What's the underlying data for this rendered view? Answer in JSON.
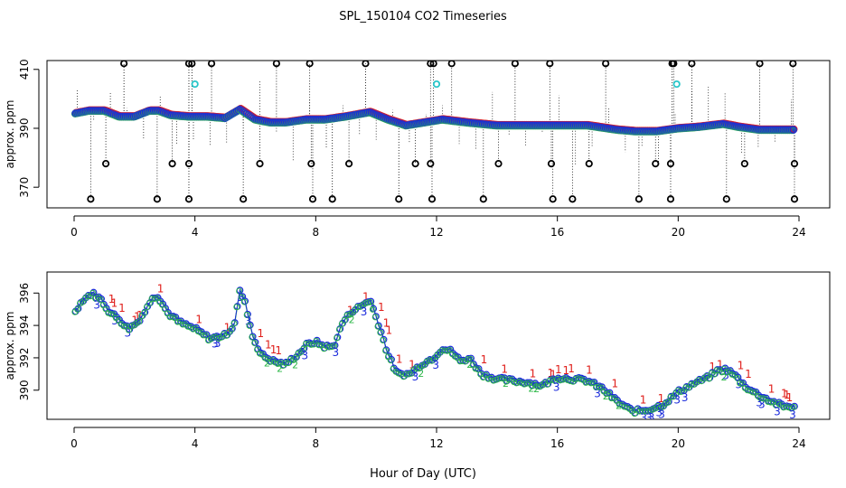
{
  "title": "SPL_150104  CO2 Timeseries",
  "xlabel": "Hour of Day (UTC)",
  "colors": {
    "primary": "#1a2adb",
    "secondary": "#2fb84a",
    "tertiary": "#e0201c",
    "calibration": "#29c6c9",
    "outlier": "#000000"
  },
  "chart_data": [
    {
      "type": "scatter",
      "panel": "top",
      "ylabel": "approx. ppm",
      "xlim": [
        0,
        24
      ],
      "ylim": [
        363,
        413
      ],
      "x_ticks": [
        0,
        4,
        8,
        12,
        16,
        20,
        24
      ],
      "y_ticks": [
        370,
        390,
        410
      ],
      "baseline_knots": {
        "x": [
          0,
          0.5,
          1,
          1.5,
          2,
          2.5,
          2.8,
          3.2,
          3.8,
          4.4,
          5.0,
          5.5,
          6.0,
          6.5,
          7.0,
          7.7,
          8.3,
          9.0,
          9.8,
          10.4,
          11.0,
          11.6,
          12.2,
          13.0,
          14.0,
          15.0,
          16.0,
          17.0,
          18.0,
          18.6,
          19.3,
          20.0,
          20.7,
          21.5,
          22.0,
          22.7,
          23.4,
          23.8
        ],
        "y": [
          395,
          396,
          396,
          394,
          394,
          396,
          396,
          394.5,
          394,
          394,
          393.5,
          396.5,
          393,
          392,
          392,
          393,
          393,
          394,
          395.5,
          393,
          391,
          392,
          393,
          392,
          391,
          391,
          391,
          391,
          389.5,
          389,
          389,
          390,
          390.5,
          391.5,
          390.5,
          389.5,
          389.5,
          389.5
        ]
      },
      "outlier_points": [
        {
          "x": 0.55,
          "y": 366
        },
        {
          "x": 1.05,
          "y": 378
        },
        {
          "x": 1.65,
          "y": 412
        },
        {
          "x": 2.75,
          "y": 366
        },
        {
          "x": 3.25,
          "y": 378
        },
        {
          "x": 3.8,
          "y": 412
        },
        {
          "x": 3.8,
          "y": 378
        },
        {
          "x": 3.8,
          "y": 366
        },
        {
          "x": 3.9,
          "y": 412
        },
        {
          "x": 4.55,
          "y": 412
        },
        {
          "x": 5.6,
          "y": 366
        },
        {
          "x": 6.15,
          "y": 378
        },
        {
          "x": 6.7,
          "y": 412
        },
        {
          "x": 7.8,
          "y": 412
        },
        {
          "x": 7.85,
          "y": 378
        },
        {
          "x": 7.9,
          "y": 366
        },
        {
          "x": 8.55,
          "y": 366
        },
        {
          "x": 9.1,
          "y": 378
        },
        {
          "x": 9.65,
          "y": 412
        },
        {
          "x": 10.75,
          "y": 366
        },
        {
          "x": 11.3,
          "y": 378
        },
        {
          "x": 11.8,
          "y": 412
        },
        {
          "x": 11.8,
          "y": 378
        },
        {
          "x": 11.85,
          "y": 366
        },
        {
          "x": 11.9,
          "y": 412
        },
        {
          "x": 12.5,
          "y": 412
        },
        {
          "x": 13.55,
          "y": 366
        },
        {
          "x": 14.05,
          "y": 378
        },
        {
          "x": 14.6,
          "y": 412
        },
        {
          "x": 15.75,
          "y": 412
        },
        {
          "x": 15.8,
          "y": 378
        },
        {
          "x": 15.85,
          "y": 366
        },
        {
          "x": 16.5,
          "y": 366
        },
        {
          "x": 17.05,
          "y": 378
        },
        {
          "x": 17.6,
          "y": 412
        },
        {
          "x": 18.7,
          "y": 366
        },
        {
          "x": 19.25,
          "y": 378
        },
        {
          "x": 19.8,
          "y": 412
        },
        {
          "x": 19.75,
          "y": 378
        },
        {
          "x": 19.75,
          "y": 366
        },
        {
          "x": 19.85,
          "y": 412
        },
        {
          "x": 20.45,
          "y": 412
        },
        {
          "x": 21.6,
          "y": 366
        },
        {
          "x": 22.2,
          "y": 378
        },
        {
          "x": 22.7,
          "y": 412
        },
        {
          "x": 23.8,
          "y": 412
        },
        {
          "x": 23.85,
          "y": 378
        },
        {
          "x": 23.85,
          "y": 366
        }
      ],
      "calibration_points": [
        {
          "x": 4.0,
          "y": 405
        },
        {
          "x": 12.0,
          "y": 405
        },
        {
          "x": 19.95,
          "y": 405
        }
      ]
    },
    {
      "type": "scatter",
      "panel": "bottom",
      "ylabel": "approx. ppm",
      "xlim": [
        0,
        24
      ],
      "ylim": [
        388.2,
        397.3
      ],
      "x_ticks": [
        0,
        4,
        8,
        12,
        16,
        20,
        24
      ],
      "y_ticks": [
        390,
        392,
        394,
        396
      ],
      "series_labels": [
        "1",
        "2",
        "3"
      ],
      "knots": {
        "x": [
          0,
          0.3,
          0.6,
          0.9,
          1.2,
          1.5,
          1.8,
          2.1,
          2.4,
          2.6,
          2.8,
          3.1,
          3.5,
          4.0,
          4.5,
          5.0,
          5.3,
          5.5,
          5.7,
          5.9,
          6.2,
          6.6,
          7.0,
          7.4,
          7.7,
          8.0,
          8.3,
          8.6,
          8.9,
          9.2,
          9.5,
          9.8,
          10.1,
          10.4,
          10.7,
          11.1,
          11.5,
          11.9,
          12.2,
          12.5,
          12.8,
          13.1,
          13.5,
          14.0,
          14.5,
          15.0,
          15.5,
          16.0,
          16.5,
          17.0,
          17.5,
          18.0,
          18.5,
          19.0,
          19.5,
          20.0,
          20.5,
          21.0,
          21.3,
          21.6,
          21.9,
          22.2,
          22.5,
          23.0,
          23.5,
          23.9
        ],
        "y": [
          394.8,
          395.6,
          396.0,
          395.6,
          394.8,
          394.4,
          393.8,
          394.2,
          395.0,
          395.8,
          395.8,
          394.8,
          394.2,
          393.8,
          393.2,
          393.4,
          394.0,
          396.2,
          395.2,
          393.4,
          392.2,
          391.8,
          391.6,
          392.2,
          392.8,
          393.0,
          392.7,
          392.7,
          394.2,
          394.9,
          395.2,
          395.6,
          394.0,
          392.2,
          391.0,
          391.0,
          391.6,
          392.0,
          392.6,
          392.4,
          391.8,
          392.0,
          391.0,
          390.7,
          390.6,
          390.5,
          390.3,
          390.8,
          390.7,
          390.6,
          390.1,
          389.3,
          388.7,
          388.8,
          389.1,
          389.9,
          390.4,
          390.8,
          391.2,
          391.3,
          390.9,
          390.3,
          389.9,
          389.4,
          389.0,
          389.0
        ]
      }
    }
  ]
}
